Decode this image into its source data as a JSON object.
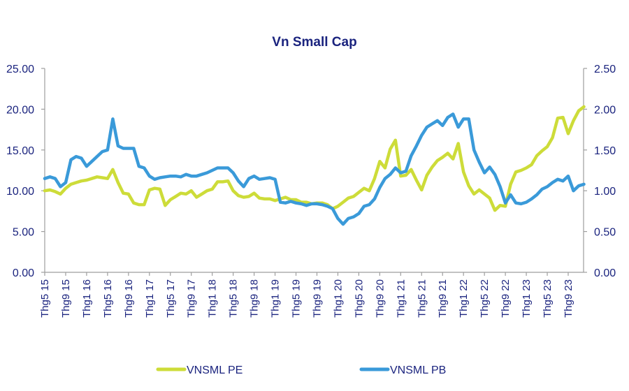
{
  "chart_data": {
    "type": "line",
    "title": "Vn Small Cap",
    "xlabel": "",
    "ylabel": "",
    "y_left": {
      "min": 0,
      "max": 25,
      "ticks": [
        "0.00",
        "5.00",
        "10.00",
        "15.00",
        "20.00",
        "25.00"
      ],
      "tick_values": [
        0,
        5,
        10,
        15,
        20,
        25
      ]
    },
    "y_right": {
      "min": 0,
      "max": 2.5,
      "ticks": [
        "0.00",
        "0.50",
        "1.00",
        "1.50",
        "2.00",
        "2.50"
      ],
      "tick_values": [
        0,
        0.5,
        1,
        1.5,
        2,
        2.5
      ]
    },
    "x_tick_labels": [
      "Thg5 15",
      "Thg9 15",
      "Thg1 16",
      "Thg5 16",
      "Thg9 16",
      "Thg1 17",
      "Thg5 17",
      "Thg9 17",
      "Thg1 18",
      "Thg5 18",
      "Thg9 18",
      "Thg1 19",
      "Thg5 19",
      "Thg9 19",
      "Thg1 20",
      "Thg5 20",
      "Thg9 20",
      "Thg1 21",
      "Thg5 21",
      "Thg9 21",
      "Thg1 22",
      "Thg5 22",
      "Thg9 22",
      "Thg1 23",
      "Thg5 23",
      "Thg9 23"
    ],
    "x_unit": "months since May 2015",
    "x_range": [
      0,
      103
    ],
    "grid": false,
    "legend_position": "bottom",
    "series": [
      {
        "name": "VNSML PE",
        "axis": "left",
        "color": "#cddc39",
        "x": [
          0,
          1,
          2,
          3,
          4,
          5,
          6,
          7,
          8,
          9,
          10,
          11,
          12,
          13,
          14,
          15,
          16,
          17,
          18,
          19,
          20,
          21,
          22,
          23,
          24,
          25,
          26,
          27,
          28,
          29,
          30,
          31,
          32,
          33,
          34,
          35,
          36,
          37,
          38,
          39,
          40,
          41,
          42,
          43,
          44,
          45,
          46,
          47,
          48,
          49,
          50,
          51,
          52,
          53,
          54,
          55,
          56,
          57,
          58,
          59,
          60,
          61,
          62,
          63,
          64,
          65,
          66,
          67,
          68,
          69,
          70,
          71,
          72,
          73,
          74,
          75,
          76,
          77,
          78,
          79,
          80,
          81,
          82,
          83,
          84,
          85,
          86,
          87,
          88,
          89,
          90,
          91,
          92,
          93,
          94,
          95,
          96,
          97,
          98,
          99,
          100,
          101,
          102,
          103
        ],
        "values": [
          10.0,
          10.1,
          9.9,
          9.6,
          10.3,
          10.8,
          11.0,
          11.2,
          11.3,
          11.5,
          11.7,
          11.6,
          11.5,
          12.6,
          11.0,
          9.7,
          9.6,
          8.5,
          8.3,
          8.3,
          10.1,
          10.3,
          10.2,
          8.2,
          8.9,
          9.3,
          9.7,
          9.6,
          10.0,
          9.2,
          9.6,
          10.0,
          10.2,
          11.1,
          11.1,
          11.2,
          10.0,
          9.4,
          9.2,
          9.3,
          9.7,
          9.1,
          9.0,
          9.0,
          8.8,
          9.0,
          9.2,
          8.9,
          8.9,
          8.6,
          8.6,
          8.4,
          8.5,
          8.5,
          8.3,
          7.8,
          8.1,
          8.6,
          9.1,
          9.3,
          9.8,
          10.3,
          10.0,
          11.5,
          13.6,
          12.8,
          15.1,
          16.2,
          11.8,
          11.9,
          12.6,
          11.3,
          10.1,
          11.9,
          12.9,
          13.7,
          14.1,
          14.6,
          13.9,
          15.8,
          12.3,
          10.6,
          9.6,
          10.1,
          9.6,
          9.1,
          7.6,
          8.2,
          8.1,
          10.8,
          12.3,
          12.5,
          12.8,
          13.2,
          14.3,
          14.9,
          15.4,
          16.5,
          18.9,
          19.0,
          17.0,
          18.6,
          19.8,
          20.3
        ]
      },
      {
        "name": "VNSML PB",
        "axis": "right",
        "color": "#3a9ad9",
        "x": [
          0,
          1,
          2,
          3,
          4,
          5,
          6,
          7,
          8,
          9,
          10,
          11,
          12,
          13,
          14,
          15,
          16,
          17,
          18,
          19,
          20,
          21,
          22,
          23,
          24,
          25,
          26,
          27,
          28,
          29,
          30,
          31,
          32,
          33,
          34,
          35,
          36,
          37,
          38,
          39,
          40,
          41,
          42,
          43,
          44,
          45,
          46,
          47,
          48,
          49,
          50,
          51,
          52,
          53,
          54,
          55,
          56,
          57,
          58,
          59,
          60,
          61,
          62,
          63,
          64,
          65,
          66,
          67,
          68,
          69,
          70,
          71,
          72,
          73,
          74,
          75,
          76,
          77,
          78,
          79,
          80,
          81,
          82,
          83,
          84,
          85,
          86,
          87,
          88,
          89,
          90,
          91,
          92,
          93,
          94,
          95,
          96,
          97,
          98,
          99,
          100,
          101,
          102,
          103
        ],
        "values": [
          1.15,
          1.17,
          1.15,
          1.05,
          1.1,
          1.38,
          1.42,
          1.4,
          1.3,
          1.36,
          1.42,
          1.48,
          1.5,
          1.88,
          1.55,
          1.52,
          1.52,
          1.52,
          1.3,
          1.28,
          1.18,
          1.14,
          1.16,
          1.17,
          1.18,
          1.18,
          1.17,
          1.2,
          1.18,
          1.18,
          1.2,
          1.22,
          1.25,
          1.28,
          1.28,
          1.28,
          1.22,
          1.12,
          1.05,
          1.15,
          1.18,
          1.14,
          1.15,
          1.16,
          1.14,
          0.86,
          0.85,
          0.87,
          0.85,
          0.84,
          0.82,
          0.84,
          0.84,
          0.83,
          0.81,
          0.78,
          0.66,
          0.59,
          0.66,
          0.68,
          0.72,
          0.81,
          0.83,
          0.9,
          1.04,
          1.15,
          1.2,
          1.28,
          1.22,
          1.24,
          1.43,
          1.55,
          1.68,
          1.78,
          1.82,
          1.86,
          1.8,
          1.9,
          1.94,
          1.78,
          1.88,
          1.88,
          1.5,
          1.35,
          1.22,
          1.29,
          1.2,
          1.05,
          0.85,
          0.95,
          0.85,
          0.84,
          0.86,
          0.9,
          0.95,
          1.02,
          1.05,
          1.1,
          1.14,
          1.12,
          1.18,
          1.0,
          1.06,
          1.08
        ]
      }
    ]
  }
}
